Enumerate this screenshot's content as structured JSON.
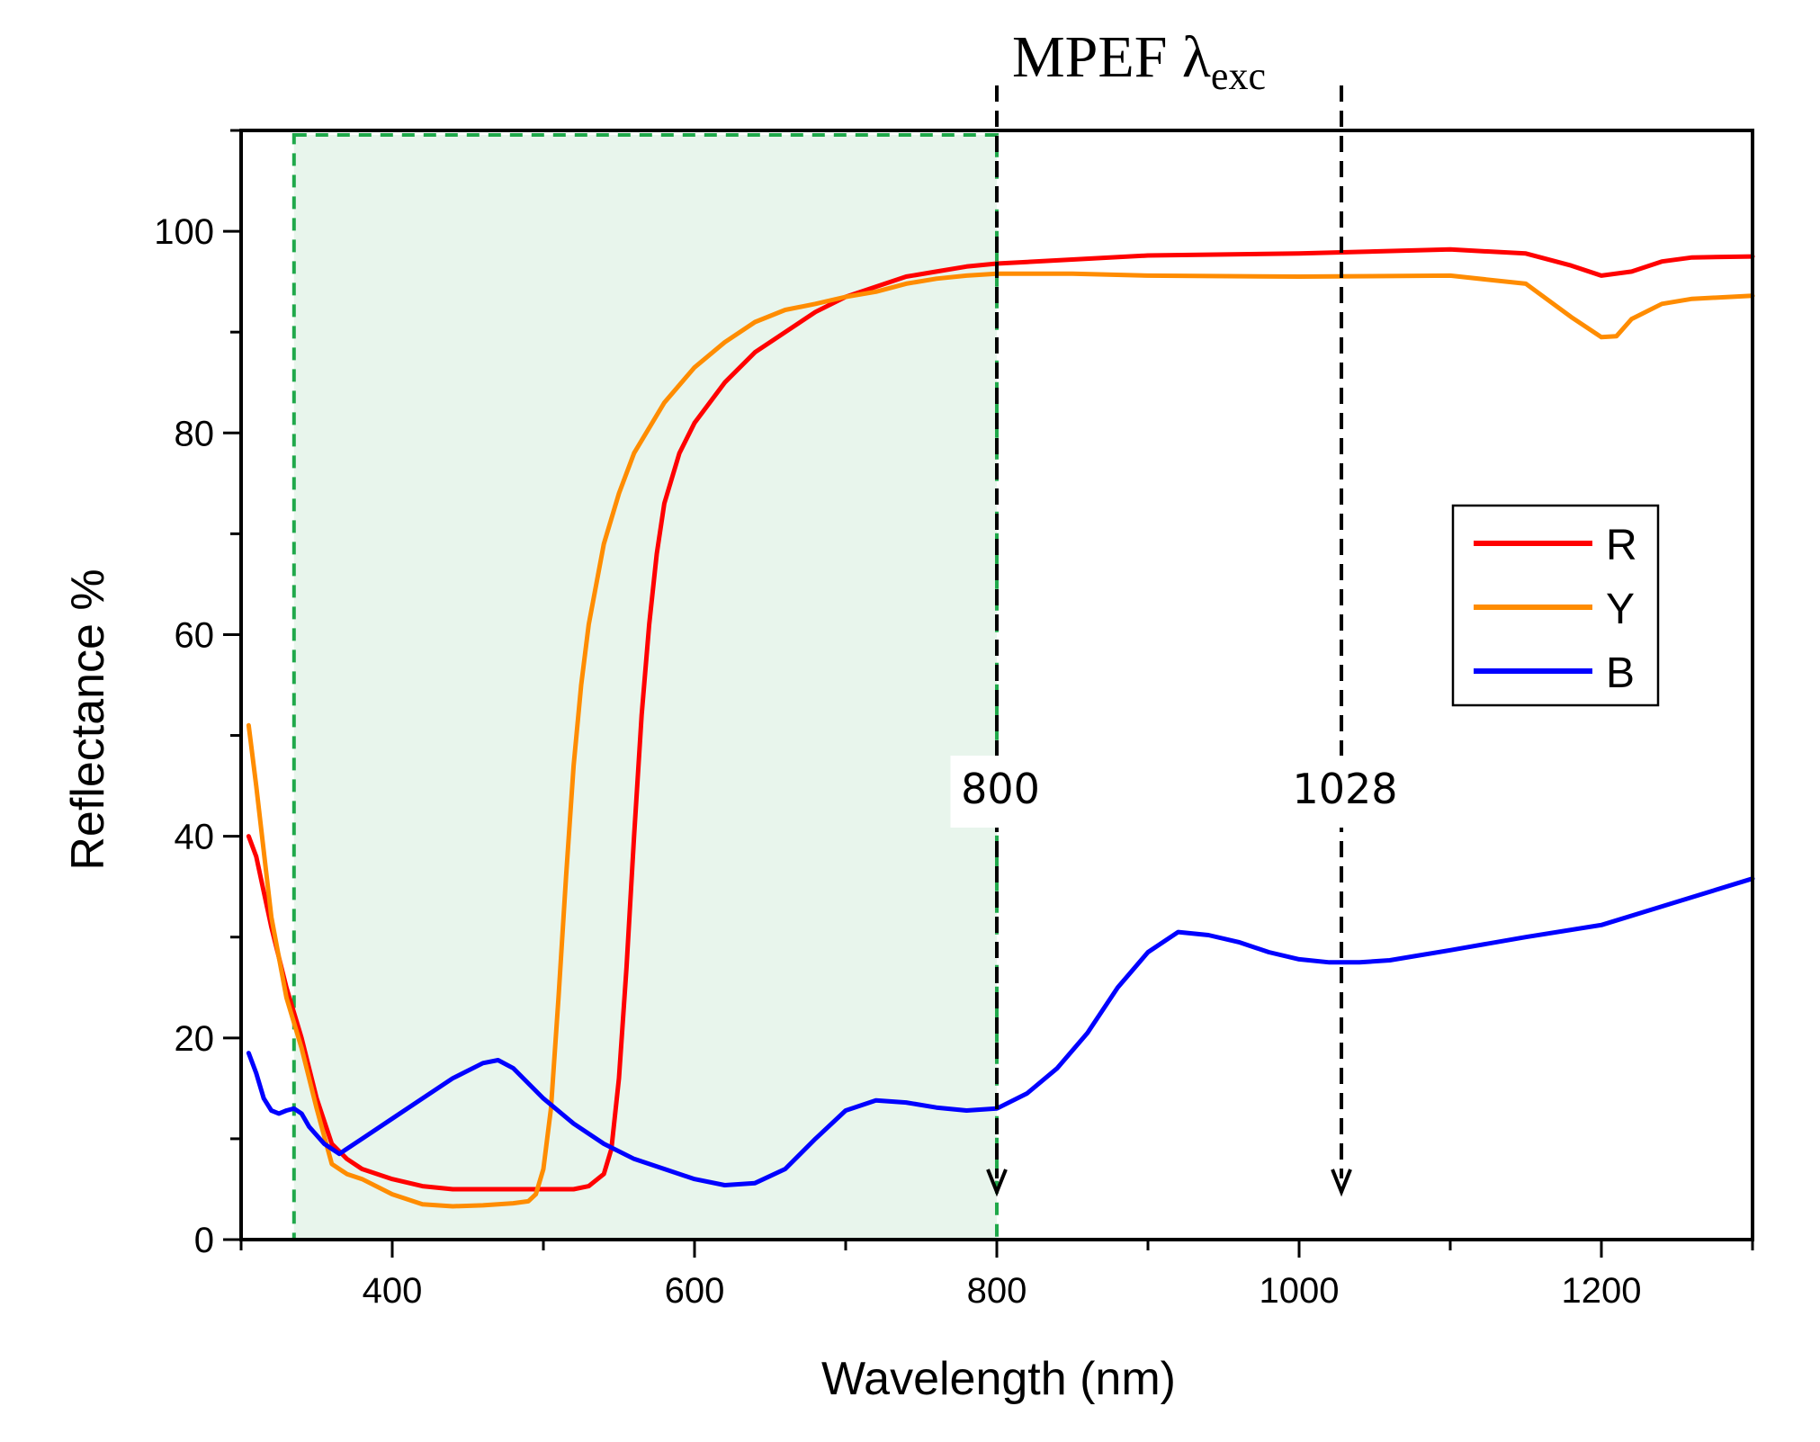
{
  "chart_data": {
    "type": "line",
    "title": "",
    "xlabel": "Wavelength (nm)",
    "ylabel": "Reflectance %",
    "xlim": [
      300,
      1300
    ],
    "ylim": [
      0,
      110
    ],
    "xticks": [
      400,
      600,
      800,
      1000,
      1200
    ],
    "yticks": [
      0,
      20,
      40,
      60,
      80,
      100
    ],
    "grid": false,
    "legend_position": "right",
    "series": [
      {
        "name": "R",
        "color": "#ff0000",
        "points": [
          [
            305,
            40
          ],
          [
            310,
            38
          ],
          [
            320,
            31
          ],
          [
            330,
            25
          ],
          [
            340,
            20
          ],
          [
            350,
            14
          ],
          [
            360,
            9.5
          ],
          [
            370,
            8
          ],
          [
            380,
            7
          ],
          [
            400,
            6
          ],
          [
            420,
            5.3
          ],
          [
            440,
            5
          ],
          [
            460,
            5
          ],
          [
            480,
            5
          ],
          [
            500,
            5
          ],
          [
            520,
            5
          ],
          [
            530,
            5.3
          ],
          [
            540,
            6.5
          ],
          [
            545,
            9
          ],
          [
            550,
            16
          ],
          [
            555,
            27
          ],
          [
            560,
            40
          ],
          [
            565,
            52
          ],
          [
            570,
            61
          ],
          [
            575,
            68
          ],
          [
            580,
            73
          ],
          [
            590,
            78
          ],
          [
            600,
            81
          ],
          [
            620,
            85
          ],
          [
            640,
            88
          ],
          [
            660,
            90
          ],
          [
            680,
            92
          ],
          [
            700,
            93.5
          ],
          [
            720,
            94.5
          ],
          [
            740,
            95.5
          ],
          [
            760,
            96
          ],
          [
            780,
            96.5
          ],
          [
            800,
            96.8
          ],
          [
            850,
            97.2
          ],
          [
            900,
            97.6
          ],
          [
            1000,
            97.8
          ],
          [
            1100,
            98.2
          ],
          [
            1150,
            97.8
          ],
          [
            1180,
            96.6
          ],
          [
            1200,
            95.6
          ],
          [
            1220,
            96
          ],
          [
            1240,
            97
          ],
          [
            1260,
            97.4
          ],
          [
            1300,
            97.5
          ]
        ]
      },
      {
        "name": "Y",
        "color": "#ff8c00",
        "points": [
          [
            305,
            51
          ],
          [
            310,
            45
          ],
          [
            320,
            32
          ],
          [
            330,
            24
          ],
          [
            340,
            19
          ],
          [
            350,
            13
          ],
          [
            360,
            7.5
          ],
          [
            370,
            6.5
          ],
          [
            380,
            6
          ],
          [
            400,
            4.5
          ],
          [
            420,
            3.5
          ],
          [
            440,
            3.3
          ],
          [
            460,
            3.4
          ],
          [
            480,
            3.6
          ],
          [
            490,
            3.8
          ],
          [
            495,
            4.5
          ],
          [
            500,
            7
          ],
          [
            505,
            13
          ],
          [
            510,
            24
          ],
          [
            515,
            36
          ],
          [
            520,
            47
          ],
          [
            525,
            55
          ],
          [
            530,
            61
          ],
          [
            540,
            69
          ],
          [
            550,
            74
          ],
          [
            560,
            78
          ],
          [
            580,
            83
          ],
          [
            600,
            86.5
          ],
          [
            620,
            89
          ],
          [
            640,
            91
          ],
          [
            660,
            92.2
          ],
          [
            680,
            92.8
          ],
          [
            700,
            93.5
          ],
          [
            720,
            94
          ],
          [
            740,
            94.8
          ],
          [
            760,
            95.3
          ],
          [
            780,
            95.6
          ],
          [
            800,
            95.8
          ],
          [
            850,
            95.8
          ],
          [
            900,
            95.6
          ],
          [
            1000,
            95.5
          ],
          [
            1100,
            95.6
          ],
          [
            1150,
            94.8
          ],
          [
            1180,
            91.5
          ],
          [
            1200,
            89.5
          ],
          [
            1210,
            89.6
          ],
          [
            1220,
            91.3
          ],
          [
            1240,
            92.8
          ],
          [
            1260,
            93.3
          ],
          [
            1300,
            93.6
          ]
        ]
      },
      {
        "name": "B",
        "color": "#0000ff",
        "points": [
          [
            305,
            18.5
          ],
          [
            310,
            16.5
          ],
          [
            315,
            14
          ],
          [
            320,
            12.8
          ],
          [
            325,
            12.5
          ],
          [
            330,
            12.8
          ],
          [
            335,
            13
          ],
          [
            340,
            12.5
          ],
          [
            345,
            11.2
          ],
          [
            355,
            9.5
          ],
          [
            365,
            8.5
          ],
          [
            380,
            10
          ],
          [
            400,
            12
          ],
          [
            420,
            14
          ],
          [
            440,
            16
          ],
          [
            460,
            17.5
          ],
          [
            470,
            17.8
          ],
          [
            480,
            17
          ],
          [
            500,
            14
          ],
          [
            520,
            11.5
          ],
          [
            540,
            9.5
          ],
          [
            560,
            8
          ],
          [
            580,
            7
          ],
          [
            600,
            6
          ],
          [
            620,
            5.4
          ],
          [
            640,
            5.6
          ],
          [
            660,
            7
          ],
          [
            680,
            10
          ],
          [
            700,
            12.8
          ],
          [
            720,
            13.8
          ],
          [
            740,
            13.6
          ],
          [
            760,
            13.1
          ],
          [
            780,
            12.8
          ],
          [
            800,
            13
          ],
          [
            820,
            14.5
          ],
          [
            840,
            17
          ],
          [
            860,
            20.5
          ],
          [
            880,
            25
          ],
          [
            900,
            28.5
          ],
          [
            920,
            30.5
          ],
          [
            940,
            30.2
          ],
          [
            960,
            29.5
          ],
          [
            980,
            28.5
          ],
          [
            1000,
            27.8
          ],
          [
            1020,
            27.5
          ],
          [
            1040,
            27.5
          ],
          [
            1060,
            27.7
          ],
          [
            1080,
            28.2
          ],
          [
            1100,
            28.7
          ],
          [
            1150,
            30
          ],
          [
            1200,
            31.2
          ],
          [
            1250,
            33.5
          ],
          [
            1300,
            35.8
          ]
        ]
      }
    ],
    "annotations": {
      "title_main": "MPEF λ",
      "title_sub": "exc",
      "markers": [
        {
          "x": 800,
          "label": "800"
        },
        {
          "x": 1028,
          "label": "1028"
        }
      ],
      "shaded_region": {
        "x_from": 335,
        "x_to": 800,
        "color": "#e8f5ec",
        "border_color": "#1fa84a"
      }
    }
  }
}
